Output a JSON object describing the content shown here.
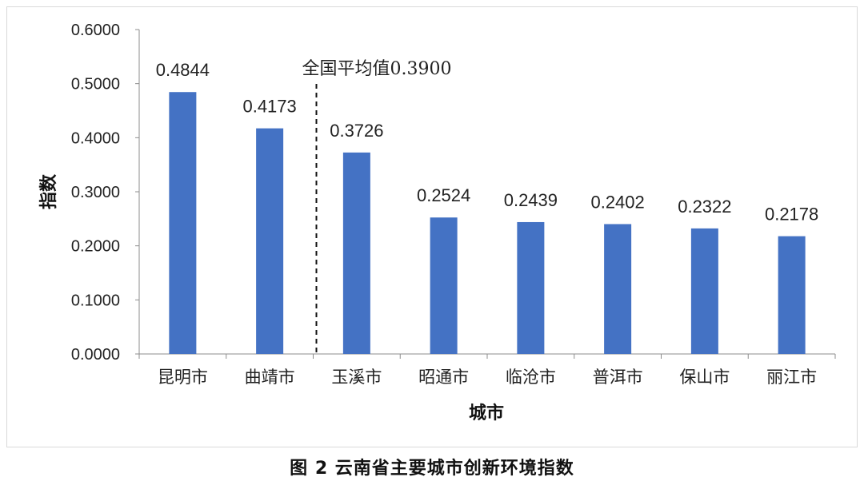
{
  "chart_data": {
    "type": "bar",
    "categories": [
      "昆明市",
      "曲靖市",
      "玉溪市",
      "昭通市",
      "临沧市",
      "普洱市",
      "保山市",
      "丽江市"
    ],
    "values": [
      0.4844,
      0.4173,
      0.3726,
      0.2524,
      0.2439,
      0.2402,
      0.2322,
      0.2178
    ],
    "value_labels": [
      "0.4844",
      "0.4173",
      "0.3726",
      "0.2524",
      "0.2439",
      "0.2402",
      "0.2322",
      "0.2178"
    ],
    "ylim": [
      0,
      0.6
    ],
    "yticks": [
      0,
      0.1,
      0.2,
      0.3,
      0.4,
      0.5,
      0.6
    ],
    "ytick_labels": [
      "0.0000",
      "0.1000",
      "0.2000",
      "0.3000",
      "0.4000",
      "0.5000",
      "0.6000"
    ],
    "xlabel": "城市",
    "ylabel": "指数",
    "bar_color": "#4472C4",
    "grid": false,
    "annotation": {
      "text": "全国平均值0.3900",
      "style": "dashed-vertical-line",
      "between_categories": [
        "曲靖市",
        "玉溪市"
      ]
    }
  },
  "caption": "图 2 云南省主要城市创新环境指数"
}
